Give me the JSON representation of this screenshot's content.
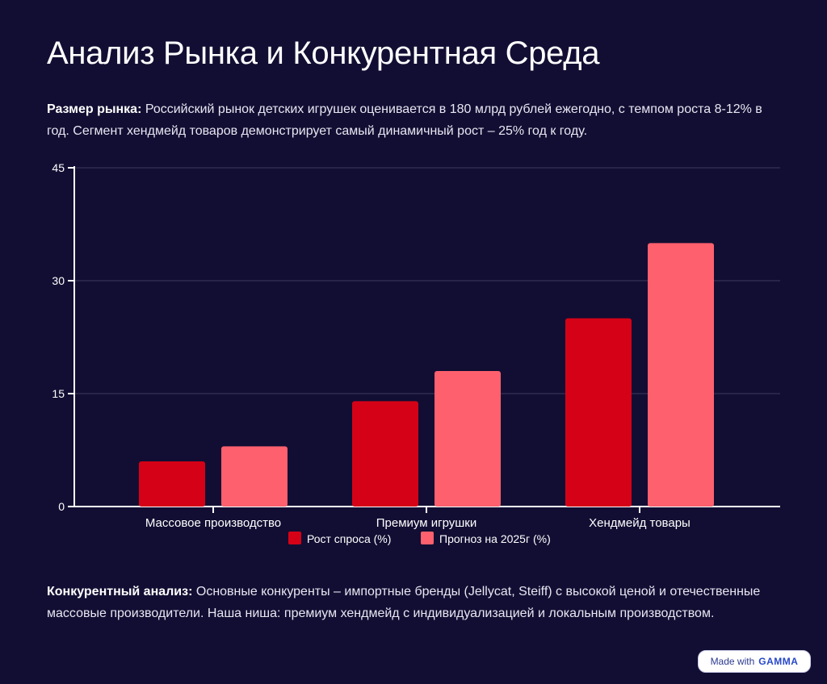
{
  "page": {
    "title": "Анализ Рынка и Конкурентная Среда",
    "market_label": "Размер рынка:",
    "market_text": " Российский рынок детских игрушек оценивается в 180 млрд рублей ежегодно, с темпом роста 8-12% в год. Сегмент хендмейд товаров демонстрирует самый динамичный рост – 25% год к году.",
    "competition_label": "Конкурентный анализ:",
    "competition_text": " Основные конкуренты – импортные бренды (Jellycat, Steiff) с высокой ценой и отечественные массовые производители. Наша ниша: премиум хендмейд с индивидуализацией и локальным производством.",
    "badge": {
      "prefix": "Made with",
      "brand": "GAMMA"
    }
  },
  "colors": {
    "background": "#120e33",
    "series1": "#d50217",
    "series2": "#ff606d",
    "axis": "#ffffff",
    "grid": "#3e3b5e",
    "text": "#ffffff"
  },
  "chart_data": {
    "type": "bar",
    "categories": [
      "Массовое производство",
      "Премиум игрушки",
      "Хендмейд товары"
    ],
    "series": [
      {
        "name": "Рост спроса (%)",
        "values": [
          6,
          14,
          25
        ]
      },
      {
        "name": "Прогноз на 2025г (%)",
        "values": [
          8,
          18,
          35
        ]
      }
    ],
    "ylim": [
      0,
      45
    ],
    "yticks": [
      0,
      15,
      30,
      45
    ],
    "grid": true,
    "legend": "bottom-center",
    "title": "",
    "xlabel": "",
    "ylabel": ""
  }
}
